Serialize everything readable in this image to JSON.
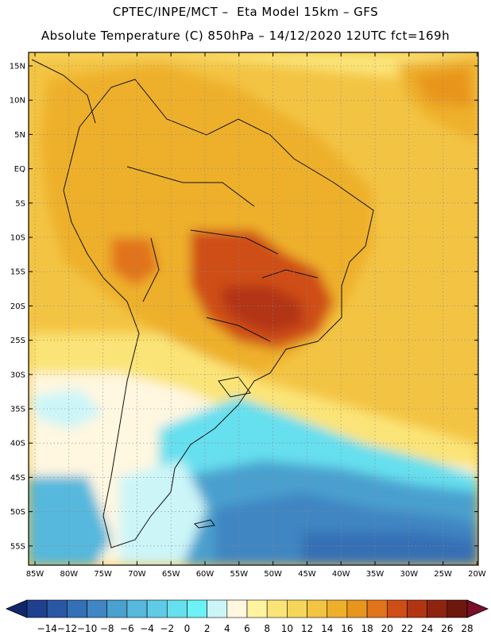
{
  "title_line1": "CPTEC/INPE/MCT –  Eta Model 15km – GFS",
  "title_line2": "Absolute Temperature (C) 850hPa – 14/12/2020 12UTC fct=169h",
  "latitude_labels": [
    "15N",
    "10N",
    "5N",
    "EQ",
    "5S",
    "10S",
    "15S",
    "20S",
    "25S",
    "30S",
    "35S",
    "40S",
    "45S",
    "50S",
    "55S"
  ],
  "longitude_labels": [
    "85W",
    "80W",
    "75W",
    "70W",
    "65W",
    "60W",
    "55W",
    "50W",
    "45W",
    "40W",
    "35W",
    "30W",
    "25W",
    "20W"
  ],
  "colorbar": {
    "labels": [
      "-14",
      "-12",
      "-10",
      "-8",
      "-6",
      "-4",
      "-2",
      "0",
      "2",
      "4",
      "6",
      "8",
      "10",
      "12",
      "14",
      "16",
      "18",
      "20",
      "22",
      "24",
      "26",
      "28"
    ],
    "colors": [
      "#1f3f8f",
      "#2a57a3",
      "#3470b5",
      "#3f86c3",
      "#4aa0cf",
      "#55b8dc",
      "#5fcbe6",
      "#66dfee",
      "#6cf2f6",
      "#ccf5f8",
      "#fff7e0",
      "#fff3a0",
      "#fbe477",
      "#f6d65a",
      "#f3c444",
      "#eeb02c",
      "#e8951e",
      "#e1731a",
      "#cf4e16",
      "#b23512",
      "#8e2410",
      "#6d180c"
    ],
    "low_color": "#12276b",
    "high_color": "#7a0f28"
  },
  "palette": {
    "warm_land": "#eeb02c",
    "hot_core": "#cf4e16",
    "very_hot": "#b23512",
    "ocean_mid": "#f3c444",
    "ocean_cool": "#fbe477",
    "cold_south": "#3f86c3",
    "cyan_band": "#66dfee"
  }
}
